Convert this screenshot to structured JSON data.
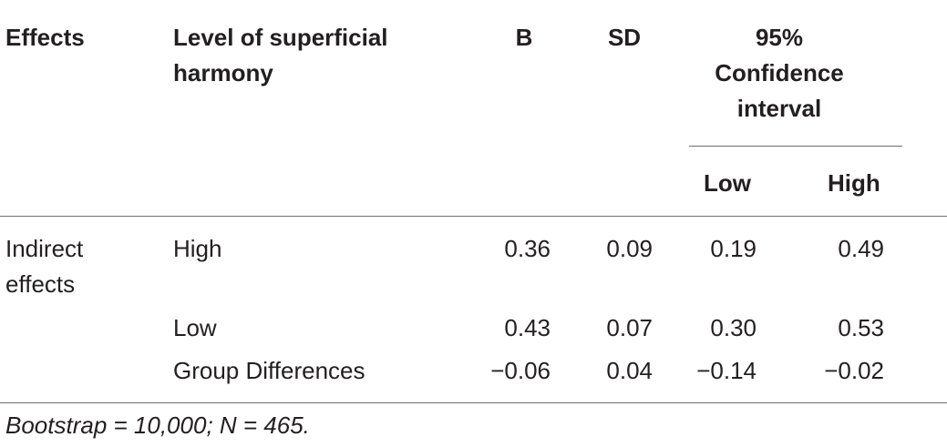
{
  "table": {
    "headers": {
      "effects": "Effects",
      "level_line1": "Level of superficial",
      "level_line2": "harmony",
      "b": "B",
      "sd": "SD",
      "ci_line1": "95%",
      "ci_line2": "Confidence",
      "ci_line3": "interval",
      "low": "Low",
      "high": "High"
    },
    "rows": [
      {
        "effect_line1": "Indirect",
        "effect_line2": "effects",
        "level": "High",
        "b": "0.36",
        "sd": "0.09",
        "low": "0.19",
        "high": "0.49"
      },
      {
        "effect_line1": "",
        "effect_line2": "",
        "level": "Low",
        "b": "0.43",
        "sd": "0.07",
        "low": "0.30",
        "high": "0.53"
      },
      {
        "effect_line1": "",
        "effect_line2": "",
        "level": "Group Differences",
        "b": "−0.06",
        "sd": "0.04",
        "low": "−0.14",
        "high": "−0.02"
      }
    ],
    "footnote": "Bootstrap = 10,000; N = 465."
  }
}
